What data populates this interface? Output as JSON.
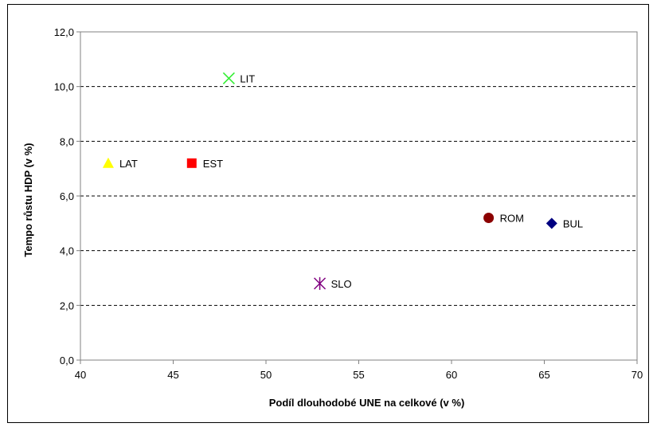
{
  "chart_data": {
    "type": "scatter",
    "xlabel": "Podíl dlouhodobé UNE na celkové (v %)",
    "ylabel": "Tempo růstu HDP (v %)",
    "xlim": [
      40,
      70
    ],
    "ylim": [
      0,
      12
    ],
    "xticks": [
      "40",
      "45",
      "50",
      "55",
      "60",
      "65",
      "70"
    ],
    "yticks": [
      "0,0",
      "2,0",
      "4,0",
      "6,0",
      "8,0",
      "10,0",
      "12,0"
    ],
    "grid": "horizontal dashed",
    "points": [
      {
        "label": "LIT",
        "x": 48.0,
        "y": 10.3,
        "marker": "x",
        "color": "#33ee33"
      },
      {
        "label": "LAT",
        "x": 41.5,
        "y": 7.2,
        "marker": "triangle",
        "color": "#ffff00"
      },
      {
        "label": "EST",
        "x": 46.0,
        "y": 7.2,
        "marker": "square",
        "color": "#ff0000"
      },
      {
        "label": "ROM",
        "x": 62.0,
        "y": 5.2,
        "marker": "circle",
        "color": "#8b0000"
      },
      {
        "label": "BUL",
        "x": 65.4,
        "y": 5.0,
        "marker": "diamond",
        "color": "#000080"
      },
      {
        "label": "SLO",
        "x": 52.9,
        "y": 2.8,
        "marker": "asterisk",
        "color": "#800080"
      }
    ]
  }
}
